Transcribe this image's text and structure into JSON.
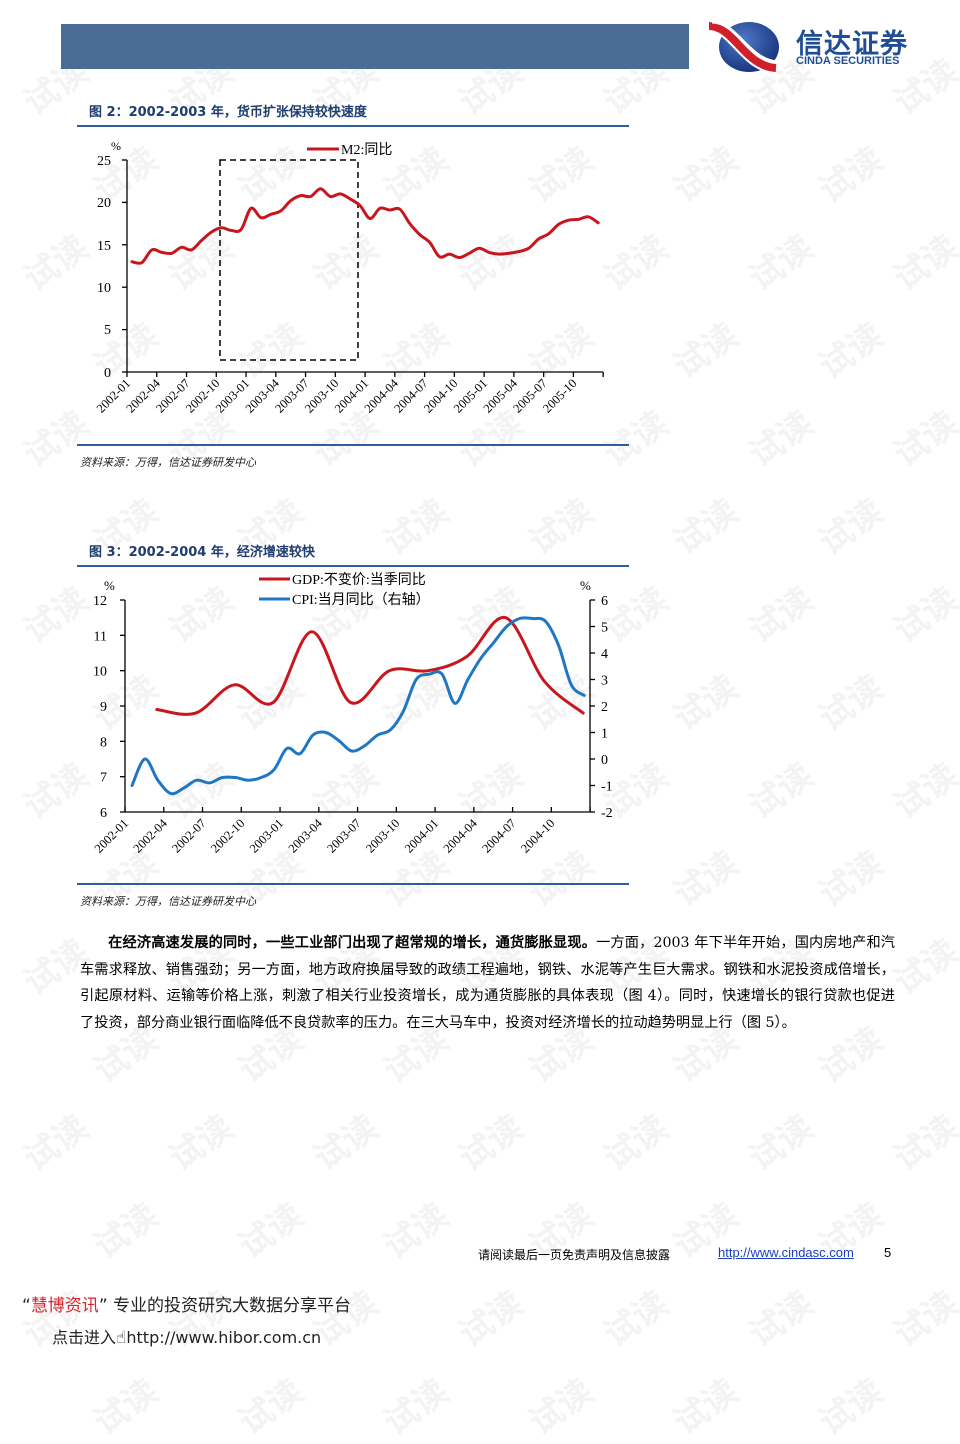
{
  "header": {
    "logo_cn": "信达证券",
    "logo_en": "CINDA SECURITIES",
    "bar_color": "#4a6d96"
  },
  "watermark": "试读",
  "figures": [
    {
      "title": "图 2：2002-2003 年，货币扩张保持较快速度",
      "source": "资料来源：万得，信达证券研发中心"
    },
    {
      "title": "图 3：2002-2004 年，经济增速较快",
      "source": "资料来源：万得，信达证券研发中心"
    }
  ],
  "chart_data": [
    {
      "type": "line",
      "title": "图 2：2002-2003 年，货币扩张保持较快速度",
      "ylabel": "%",
      "ylim": [
        0,
        25
      ],
      "yticks": [
        0,
        5,
        10,
        15,
        20,
        25
      ],
      "xticks": [
        "2002-01",
        "2002-04",
        "2002-07",
        "2002-10",
        "2003-01",
        "2003-04",
        "2003-07",
        "2003-10",
        "2004-01",
        "2004-04",
        "2004-07",
        "2004-10",
        "2005-01",
        "2005-04",
        "2005-07",
        "2005-10"
      ],
      "legend": [
        "M2:同比"
      ],
      "annotation": "dashed box highlighting 2002-10 to 2003-12",
      "x": [
        "2002-01",
        "2002-02",
        "2002-03",
        "2002-04",
        "2002-05",
        "2002-06",
        "2002-07",
        "2002-08",
        "2002-09",
        "2002-10",
        "2002-11",
        "2002-12",
        "2003-01",
        "2003-02",
        "2003-03",
        "2003-04",
        "2003-05",
        "2003-06",
        "2003-07",
        "2003-08",
        "2003-09",
        "2003-10",
        "2003-11",
        "2003-12",
        "2004-01",
        "2004-02",
        "2004-03",
        "2004-04",
        "2004-05",
        "2004-06",
        "2004-07",
        "2004-08",
        "2004-09",
        "2004-10",
        "2004-11",
        "2004-12",
        "2005-01",
        "2005-02",
        "2005-03",
        "2005-04",
        "2005-05",
        "2005-06",
        "2005-07",
        "2005-08",
        "2005-09",
        "2005-10",
        "2005-11",
        "2005-12"
      ],
      "series": [
        {
          "name": "M2:同比",
          "color": "#c8161d",
          "values": [
            13.0,
            12.9,
            14.4,
            14.1,
            14.0,
            14.7,
            14.4,
            15.5,
            16.5,
            17.0,
            16.7,
            16.8,
            19.3,
            18.2,
            18.6,
            19.0,
            20.2,
            20.8,
            20.7,
            21.6,
            20.7,
            21.0,
            20.4,
            19.6,
            18.1,
            19.3,
            19.1,
            19.2,
            17.5,
            16.2,
            15.3,
            13.6,
            13.9,
            13.5,
            14.0,
            14.6,
            14.1,
            13.9,
            14.0,
            14.2,
            14.6,
            15.7,
            16.3,
            17.4,
            17.9,
            18.0,
            18.3,
            17.6
          ]
        }
      ]
    },
    {
      "type": "line",
      "title": "图 3：2002-2004 年，经济增速较快",
      "ylabel": "%",
      "ylabel_right": "%",
      "ylim": [
        6,
        12
      ],
      "ylim_right": [
        -2,
        6
      ],
      "yticks": [
        6,
        7,
        8,
        9,
        10,
        11,
        12
      ],
      "yticks_right": [
        -2,
        -1,
        0,
        1,
        2,
        3,
        4,
        5,
        6
      ],
      "xticks": [
        "2002-01",
        "2002-04",
        "2002-07",
        "2002-10",
        "2003-01",
        "2003-04",
        "2003-07",
        "2003-10",
        "2004-01",
        "2004-04",
        "2004-07",
        "2004-10"
      ],
      "legend": [
        "GDP:不变价:当季同比",
        "CPI:当月同比（右轴）"
      ],
      "series": [
        {
          "name": "GDP:不变价:当季同比",
          "axis": "left",
          "color": "#c8161d",
          "x": [
            "2002-03",
            "2002-06",
            "2002-09",
            "2002-12",
            "2003-03",
            "2003-06",
            "2003-09",
            "2003-12",
            "2004-03",
            "2004-06",
            "2004-09",
            "2004-12"
          ],
          "values": [
            8.9,
            8.8,
            9.6,
            9.1,
            11.1,
            9.1,
            10.0,
            10.0,
            10.4,
            11.5,
            9.7,
            8.8
          ]
        },
        {
          "name": "CPI:当月同比（右轴）",
          "axis": "right",
          "color": "#1f77c4",
          "x": [
            "2002-01",
            "2002-02",
            "2002-03",
            "2002-04",
            "2002-05",
            "2002-06",
            "2002-07",
            "2002-08",
            "2002-09",
            "2002-10",
            "2002-11",
            "2002-12",
            "2003-01",
            "2003-02",
            "2003-03",
            "2003-04",
            "2003-05",
            "2003-06",
            "2003-07",
            "2003-08",
            "2003-09",
            "2003-10",
            "2003-11",
            "2003-12",
            "2004-01",
            "2004-02",
            "2004-03",
            "2004-04",
            "2004-05",
            "2004-06",
            "2004-07",
            "2004-08",
            "2004-09",
            "2004-10",
            "2004-11",
            "2004-12"
          ],
          "values": [
            -1.0,
            0.0,
            -0.8,
            -1.3,
            -1.1,
            -0.8,
            -0.9,
            -0.7,
            -0.7,
            -0.8,
            -0.7,
            -0.4,
            0.4,
            0.2,
            0.9,
            1.0,
            0.7,
            0.3,
            0.5,
            0.9,
            1.1,
            1.8,
            3.0,
            3.2,
            3.2,
            2.1,
            3.0,
            3.8,
            4.4,
            5.0,
            5.3,
            5.3,
            5.2,
            4.3,
            2.8,
            2.4
          ]
        }
      ]
    }
  ],
  "paragraph": {
    "lead": "在经济高速发展的同时，一些工业部门出现了超常规的增长，通货膨胀显现。",
    "body": "一方面，2003 年下半年开始，国内房地产和汽车需求释放、销售强劲；另一方面，地方政府换届导致的政绩工程遍地，钢铁、水泥等产生巨大需求。钢铁和水泥投资成倍增长，引起原材料、运输等价格上涨，刺激了相关行业投资增长，成为通货膨胀的具体表现（图 4）。同时，快速增长的银行贷款也促进了投资，部分商业银行面临降低不良贷款率的压力。在三大马车中，投资对经济增长的拉动趋势明显上行（图 5）。"
  },
  "footer": {
    "note": "请阅读最后一页免责声明及信息披露",
    "link": "http://www.cindasc.com",
    "page": "5"
  },
  "promo": {
    "quote_open": "“",
    "brand": "慧博资讯",
    "quote_close": "”",
    "tagline": "专业的投资研究大数据分享平台",
    "enter": "点击进入",
    "hand_icon": "☝",
    "url": "http://www.hibor.com.cn"
  }
}
